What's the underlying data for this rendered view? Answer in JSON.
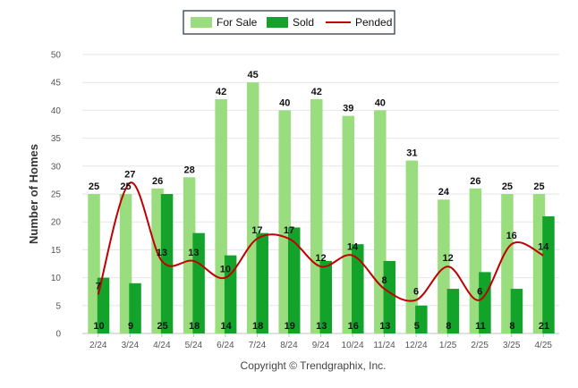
{
  "chart_data": {
    "type": "bar",
    "categories": [
      "2/24",
      "3/24",
      "4/24",
      "5/24",
      "6/24",
      "7/24",
      "8/24",
      "9/24",
      "10/24",
      "11/24",
      "12/24",
      "1/25",
      "2/25",
      "3/25",
      "4/25"
    ],
    "series": [
      {
        "name": "For Sale",
        "type": "bar",
        "color": "#99dd7f",
        "values": [
          25,
          25,
          26,
          28,
          42,
          45,
          40,
          42,
          39,
          40,
          31,
          24,
          26,
          25,
          25
        ]
      },
      {
        "name": "Sold",
        "type": "bar",
        "color": "#13a32b",
        "values": [
          10,
          9,
          25,
          18,
          14,
          18,
          19,
          13,
          16,
          13,
          5,
          8,
          11,
          8,
          21
        ]
      },
      {
        "name": "Pended",
        "type": "line",
        "color": "#c00000",
        "values": [
          7,
          27,
          13,
          13,
          10,
          17,
          17,
          12,
          14,
          8,
          6,
          12,
          6,
          16,
          14
        ]
      }
    ],
    "ylabel": "Number of Homes",
    "xlabel": "",
    "ylim": [
      0,
      50
    ],
    "yticks": [
      0,
      5,
      10,
      15,
      20,
      25,
      30,
      35,
      40,
      45,
      50
    ],
    "grid": true,
    "legend_position": "top-center"
  },
  "footer": {
    "copyright": "Copyright © Trendgraphix, Inc."
  }
}
